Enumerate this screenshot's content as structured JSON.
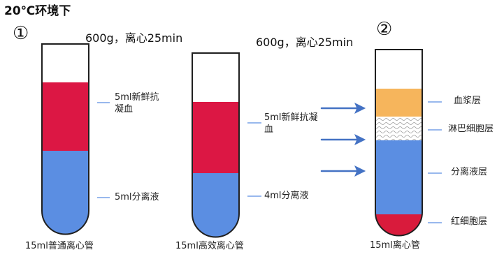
{
  "header": {
    "title": "20℃环境下"
  },
  "steps": {
    "one": "①",
    "two": "②"
  },
  "conditions": {
    "tube_a": "600g，离心25min",
    "tube_b": "600g，离心25min"
  },
  "tubes": {
    "standard": {
      "caption": "15ml普通离心管",
      "layers": {
        "blood": "5ml新鲜抗凝血",
        "separation": "5ml分离液"
      }
    },
    "high_efficiency": {
      "caption": "15ml高效离心管",
      "layers": {
        "blood": "5ml新鲜抗凝血",
        "separation": "4ml分离液"
      }
    },
    "result": {
      "caption": "15ml离心管",
      "layers": {
        "plasma": "血浆层",
        "lymphocyte": "淋巴细胞层",
        "separation": "分离液层",
        "red_cell": "红细胞层"
      }
    }
  },
  "colors": {
    "blood": "#dc1744",
    "separation": "#5b8ee2",
    "plasma": "#f6b55c",
    "red_cell": "#d91b3c",
    "arrow": "#4472c4",
    "leader": "#5b8ee2"
  }
}
